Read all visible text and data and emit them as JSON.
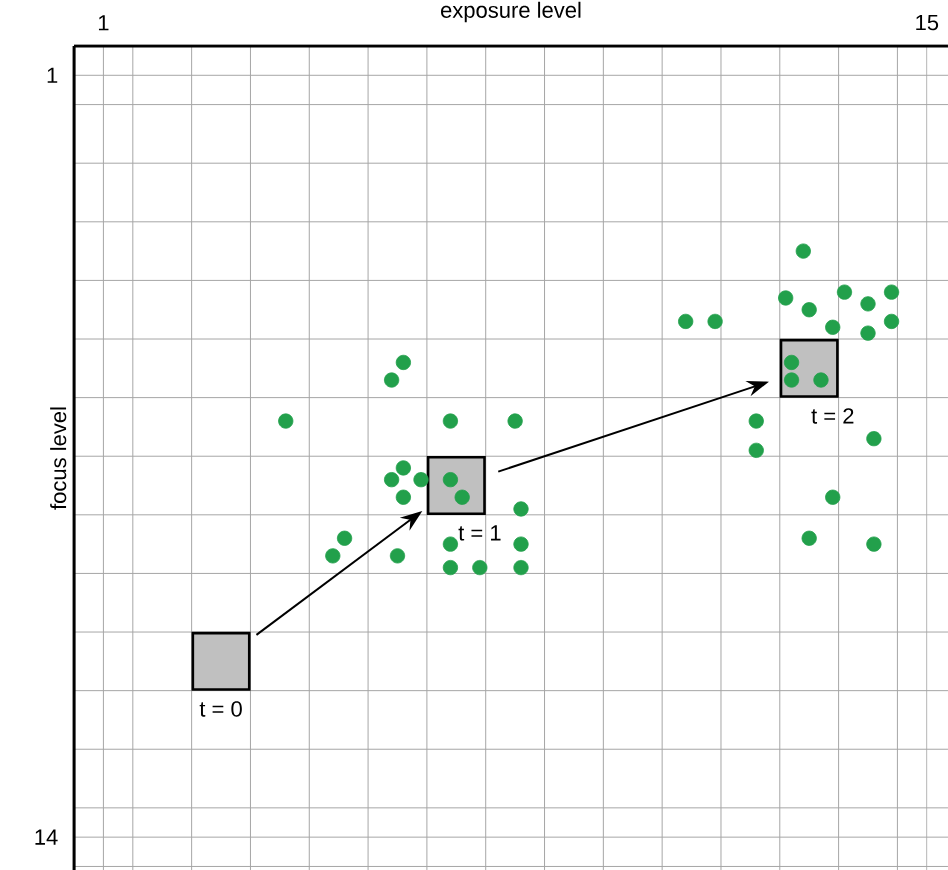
{
  "chart_data": {
    "type": "scatter",
    "xlabel": "exposure level",
    "ylabel": "focus level",
    "xlim": [
      0.5,
      15.36
    ],
    "ylim": [
      14.56,
      0.5
    ],
    "xticks": [
      {
        "value": 0.5,
        "label": null
      },
      1,
      {
        "value": 1.5,
        "label": null
      },
      {
        "value": 2.5,
        "label": null
      },
      {
        "value": 3.5,
        "label": null
      },
      {
        "value": 4.5,
        "label": null
      },
      {
        "value": 5.5,
        "label": null
      },
      {
        "value": 6.5,
        "label": null
      },
      {
        "value": 7.5,
        "label": null
      },
      {
        "value": 8.5,
        "label": null
      },
      {
        "value": 9.5,
        "label": null
      },
      {
        "value": 10.5,
        "label": null
      },
      {
        "value": 11.5,
        "label": null
      },
      {
        "value": 12.5,
        "label": null
      },
      {
        "value": 13.5,
        "label": null
      },
      {
        "value": 14.5,
        "label": null
      },
      15
    ],
    "yticks": [
      {
        "value": 0.5,
        "label": null
      },
      1,
      {
        "value": 1.5,
        "label": null
      },
      {
        "value": 2.5,
        "label": null
      },
      {
        "value": 3.5,
        "label": null
      },
      {
        "value": 4.5,
        "label": null
      },
      {
        "value": 5.5,
        "label": null
      },
      {
        "value": 6.5,
        "label": null
      },
      {
        "value": 7.5,
        "label": null
      },
      {
        "value": 8.5,
        "label": null
      },
      {
        "value": 9.5,
        "label": null
      },
      {
        "value": 10.5,
        "label": null
      },
      {
        "value": 11.5,
        "label": null
      },
      {
        "value": 12.5,
        "label": null
      },
      {
        "value": 13.5,
        "label": null
      },
      14,
      {
        "value": 14.5,
        "label": null
      }
    ],
    "grid": true,
    "marker": "circle",
    "series": [
      {
        "color": "#22a04b",
        "x": [
          6.1,
          5.9,
          4.1,
          6.9,
          8.0,
          6.1,
          5.9,
          6.4,
          6.1,
          6.9,
          7.1,
          8.1,
          5.1,
          4.9,
          6.0,
          6.9,
          8.1,
          6.9,
          7.4,
          8.1,
          12.9,
          12.6,
          13.6,
          14.4,
          13.0,
          14.0,
          10.9,
          11.4,
          13.4,
          14.4,
          14.0,
          12.7,
          12.7,
          13.2,
          12.1,
          12.1,
          14.1,
          13.4,
          13.0,
          14.1
        ],
        "values": [
          5.9,
          6.2,
          6.9,
          6.9,
          6.9,
          7.7,
          7.9,
          7.9,
          8.2,
          7.9,
          8.2,
          8.4,
          8.9,
          9.2,
          9.2,
          9.0,
          9.0,
          9.4,
          9.4,
          9.4,
          4.0,
          4.8,
          4.7,
          4.7,
          5.0,
          4.9,
          5.2,
          5.2,
          5.3,
          5.2,
          5.4,
          5.9,
          6.2,
          6.2,
          6.9,
          7.4,
          7.2,
          8.2,
          8.9,
          9.0
        ]
      },
      {
        "type": "scatter",
        "marker": "square",
        "color": "#c0c0c0",
        "x": [
          3,
          7,
          13
        ],
        "values": [
          11,
          8,
          6
        ]
      }
    ],
    "annotations": [
      "t = 0",
      "t = 1",
      "t = 2"
    ]
  }
}
